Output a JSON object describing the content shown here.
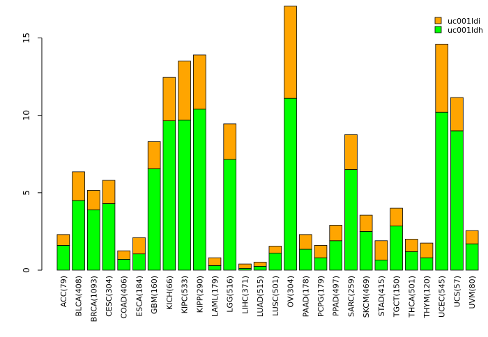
{
  "chart_data": {
    "type": "bar",
    "stacked": true,
    "title": "",
    "xlabel": "",
    "ylabel": "",
    "ylim": [
      0,
      17
    ],
    "yticks": [
      0,
      5,
      10,
      15
    ],
    "grid": false,
    "legend_position": "top-right",
    "categories": [
      "ACC(79)",
      "BLCA(408)",
      "BRCA(1093)",
      "CESC(304)",
      "COAD(406)",
      "ESCA(184)",
      "GBM(160)",
      "KICH(66)",
      "KIPC(533)",
      "KIPP(290)",
      "LAML(179)",
      "LGG(516)",
      "LIHC(371)",
      "LUAD(515)",
      "LUSC(501)",
      "OV(304)",
      "PAAD(178)",
      "PCPG(179)",
      "PPAD(497)",
      "SARC(259)",
      "SKCM(469)",
      "STAD(415)",
      "TGCT(150)",
      "THCA(501)",
      "THYM(120)",
      "UCEC(545)",
      "UCS(57)",
      "UVM(80)"
    ],
    "series": [
      {
        "name": "uc001ldh",
        "color": "#00ff00",
        "values": [
          1.6,
          4.5,
          3.9,
          4.3,
          0.7,
          1.05,
          6.55,
          9.65,
          9.7,
          10.4,
          0.3,
          7.15,
          0.12,
          0.25,
          1.1,
          11.1,
          1.35,
          0.8,
          1.9,
          6.5,
          2.5,
          0.65,
          2.85,
          1.2,
          0.8,
          10.2,
          9.0,
          1.7
        ]
      },
      {
        "name": "uc001ldi",
        "color": "#ffa500",
        "values": [
          0.7,
          1.85,
          1.25,
          1.5,
          0.55,
          1.05,
          1.75,
          2.8,
          3.8,
          3.5,
          0.5,
          2.3,
          0.28,
          0.27,
          0.45,
          5.95,
          0.95,
          0.8,
          1.0,
          2.25,
          1.05,
          1.25,
          1.15,
          0.8,
          0.95,
          4.4,
          2.15,
          0.85
        ]
      }
    ],
    "legend": [
      {
        "name": "uc001ldi",
        "color": "#ffa500"
      },
      {
        "name": "uc001ldh",
        "color": "#00ff00"
      }
    ]
  }
}
